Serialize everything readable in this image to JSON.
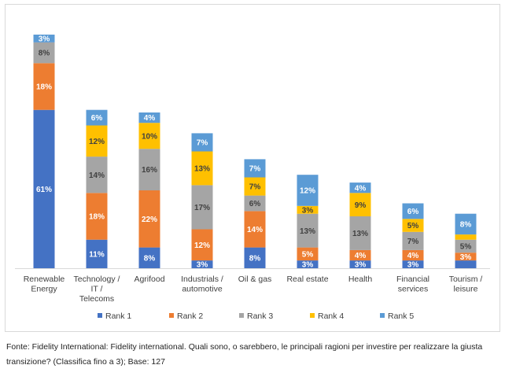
{
  "chart_data": {
    "type": "bar",
    "stacked": true,
    "categories": [
      "Renewable\nEnergy",
      "Technology /\nIT /\nTelecoms",
      "Agrifood",
      "Industrials /\nautomotive",
      "Oil & gas",
      "Real estate",
      "Health",
      "Financial\nservices",
      "Tourism /\nleisure"
    ],
    "series": [
      {
        "name": "Rank 1",
        "color": "#4472c4",
        "values": [
          61,
          11,
          8,
          3,
          8,
          3,
          3,
          3,
          3
        ]
      },
      {
        "name": "Rank 2",
        "color": "#ed7d31",
        "values": [
          18,
          18,
          22,
          12,
          14,
          5,
          4,
          4,
          3
        ]
      },
      {
        "name": "Rank 3",
        "color": "#a5a5a5",
        "values": [
          8,
          14,
          16,
          17,
          6,
          13,
          13,
          7,
          5
        ]
      },
      {
        "name": "Rank 4",
        "color": "#ffc000",
        "values": [
          0,
          12,
          10,
          13,
          7,
          3,
          9,
          5,
          2
        ]
      },
      {
        "name": "Rank 5",
        "color": "#5b9bd5",
        "values": [
          3,
          6,
          4,
          7,
          7,
          12,
          4,
          6,
          8
        ]
      }
    ],
    "value_labels": [
      [
        "61%",
        "11%",
        "8%",
        "3%",
        "8%",
        "3%",
        "3%",
        "3%",
        ""
      ],
      [
        "18%",
        "18%",
        "22%",
        "12%",
        "14%",
        "5%",
        "4%",
        "4%",
        "3%"
      ],
      [
        "8%",
        "14%",
        "16%",
        "17%",
        "6%",
        "13%",
        "13%",
        "7%",
        "5%"
      ],
      [
        "",
        "12%",
        "10%",
        "13%",
        "7%",
        "3%",
        "9%",
        "5%",
        ""
      ],
      [
        "3%",
        "6%",
        "4%",
        "7%",
        "7%",
        "12%",
        "4%",
        "6%",
        "8%"
      ]
    ],
    "legend_position": "bottom",
    "grid": false,
    "ylim": [
      0,
      92
    ]
  },
  "source_note": "Fonte: Fidelity International: Fidelity international. Quali sono, o sarebbero, le principali ragioni per investire per realizzare la giusta transizione? (Classifica fino a 3); Base: 127"
}
